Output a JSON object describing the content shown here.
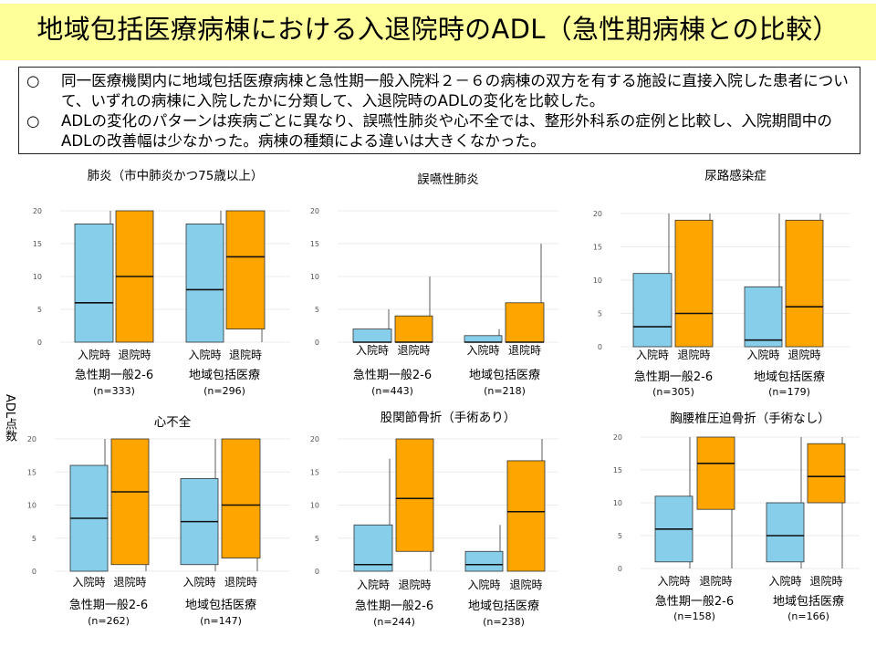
{
  "title": "地域包括医療病棟における入退院時のADL（急性期病棟との比較）",
  "summary": {
    "bullets": [
      {
        "mark": "○",
        "text": "同一医療機関内に地域包括医療病棟と急性期一般入院料２－６の病棟の双方を有する施設に直接入院した患者について、いずれの病棟に入院したかに分類して、入退院時のADLの変化を比較した。"
      },
      {
        "mark": "○",
        "text": "ADLの変化のパターンは疾病ごとに異なり、誤嚥性肺炎や心不全では、整形外科系の症例と比較し、入院期間中のADLの改善幅は少なかった。病棟の種類による違いは大きくなかった。"
      }
    ]
  },
  "y_axis_label": "ADL点数",
  "colors": {
    "admission": "#87ceeb",
    "discharge": "#ffa500",
    "grid": "#ebebeb",
    "whisker": "#333333"
  },
  "chart_data": [
    {
      "type": "box",
      "title": "肺炎（市中肺炎かつ75歳以上）",
      "ylim": [
        0,
        20
      ],
      "yticks": [
        0,
        5,
        10,
        15,
        20
      ],
      "groups": [
        {
          "name": "急性期一般2-6",
          "n": "(n=333)",
          "boxes": [
            {
              "label": "入院時",
              "color": "admission",
              "min": 0,
              "q1": 0,
              "median": 6,
              "q3": 18,
              "max": 20
            },
            {
              "label": "退院時",
              "color": "discharge",
              "min": 0,
              "q1": 0,
              "median": 10,
              "q3": 20,
              "max": 20
            }
          ]
        },
        {
          "name": "地域包括医療",
          "n": "(n=296)",
          "boxes": [
            {
              "label": "入院時",
              "color": "admission",
              "min": 0,
              "q1": 0,
              "median": 8,
              "q3": 18,
              "max": 20
            },
            {
              "label": "退院時",
              "color": "discharge",
              "min": 0,
              "q1": 2,
              "median": 13,
              "q3": 20,
              "max": 20
            }
          ]
        }
      ]
    },
    {
      "type": "box",
      "title": "誤嚥性肺炎",
      "ylim": [
        0,
        20
      ],
      "yticks": [
        0,
        5,
        10,
        15,
        20
      ],
      "groups": [
        {
          "name": "急性期一般2-6",
          "n": "(n=443)",
          "boxes": [
            {
              "label": "入院時",
              "color": "admission",
              "min": 0,
              "q1": 0,
              "median": 0,
              "q3": 2,
              "max": 5
            },
            {
              "label": "退院時",
              "color": "discharge",
              "min": 0,
              "q1": 0,
              "median": 0,
              "q3": 4,
              "max": 10
            }
          ]
        },
        {
          "name": "地域包括医療",
          "n": "(n=218)",
          "boxes": [
            {
              "label": "入院時",
              "color": "admission",
              "min": 0,
              "q1": 0,
              "median": 0,
              "q3": 1,
              "max": 2
            },
            {
              "label": "退院時",
              "color": "discharge",
              "min": 0,
              "q1": 0,
              "median": 0,
              "q3": 6,
              "max": 15
            }
          ]
        }
      ]
    },
    {
      "type": "box",
      "title": "尿路感染症",
      "ylim": [
        0,
        20
      ],
      "yticks": [
        0,
        5,
        10,
        15,
        20
      ],
      "groups": [
        {
          "name": "急性期一般2-6",
          "n": "(n=305)",
          "boxes": [
            {
              "label": "入院時",
              "color": "admission",
              "min": 0,
              "q1": 0,
              "median": 3,
              "q3": 11,
              "max": 20
            },
            {
              "label": "退院時",
              "color": "discharge",
              "min": 0,
              "q1": 0,
              "median": 5,
              "q3": 19,
              "max": 20
            }
          ]
        },
        {
          "name": "地域包括医療",
          "n": "(n=179)",
          "boxes": [
            {
              "label": "入院時",
              "color": "admission",
              "min": 0,
              "q1": 0,
              "median": 1,
              "q3": 9,
              "max": 20
            },
            {
              "label": "退院時",
              "color": "discharge",
              "min": 0,
              "q1": 0,
              "median": 6,
              "q3": 19,
              "max": 20
            }
          ]
        }
      ]
    },
    {
      "type": "box",
      "title": "心不全",
      "ylim": [
        0,
        20
      ],
      "yticks": [
        0,
        5,
        10,
        15,
        20
      ],
      "groups": [
        {
          "name": "急性期一般2-6",
          "n": "(n=262)",
          "boxes": [
            {
              "label": "入院時",
              "color": "admission",
              "min": 0,
              "q1": 0,
              "median": 8,
              "q3": 16,
              "max": 20
            },
            {
              "label": "退院時",
              "color": "discharge",
              "min": 0,
              "q1": 1,
              "median": 12,
              "q3": 20,
              "max": 20
            }
          ]
        },
        {
          "name": "地域包括医療",
          "n": "(n=147)",
          "boxes": [
            {
              "label": "入院時",
              "color": "admission",
              "min": 0,
              "q1": 1,
              "median": 7.5,
              "q3": 14,
              "max": 20
            },
            {
              "label": "退院時",
              "color": "discharge",
              "min": 0,
              "q1": 2,
              "median": 10,
              "q3": 20,
              "max": 20
            }
          ]
        }
      ]
    },
    {
      "type": "box",
      "title": "股関節骨折（手術あり）",
      "ylim": [
        0,
        20
      ],
      "yticks": [
        0,
        5,
        10,
        15,
        20
      ],
      "groups": [
        {
          "name": "急性期一般2-6",
          "n": "(n=244)",
          "boxes": [
            {
              "label": "入院時",
              "color": "admission",
              "min": 0,
              "q1": 0,
              "median": 1,
              "q3": 7,
              "max": 17
            },
            {
              "label": "退院時",
              "color": "discharge",
              "min": 0,
              "q1": 3,
              "median": 11,
              "q3": 20,
              "max": 20
            }
          ]
        },
        {
          "name": "地域包括医療",
          "n": "(n=238)",
          "boxes": [
            {
              "label": "入院時",
              "color": "admission",
              "min": 0,
              "q1": 0,
              "median": 1,
              "q3": 3,
              "max": 7
            },
            {
              "label": "退院時",
              "color": "discharge",
              "min": 0,
              "q1": 0,
              "median": 9,
              "q3": 16.7,
              "max": 20
            }
          ]
        }
      ]
    },
    {
      "type": "box",
      "title": "胸腰椎圧迫骨折（手術なし）",
      "ylim": [
        0,
        20
      ],
      "yticks": [
        0,
        5,
        10,
        15,
        20
      ],
      "groups": [
        {
          "name": "急性期一般2-6",
          "n": "(n=158)",
          "boxes": [
            {
              "label": "入院時",
              "color": "admission",
              "min": 0,
              "q1": 1,
              "median": 6,
              "q3": 11,
              "max": 20
            },
            {
              "label": "退院時",
              "color": "discharge",
              "min": 0,
              "q1": 9,
              "median": 16,
              "q3": 20,
              "max": 20
            }
          ]
        },
        {
          "name": "地域包括医療",
          "n": "(n=166)",
          "boxes": [
            {
              "label": "入院時",
              "color": "admission",
              "min": 0,
              "q1": 1,
              "median": 5,
              "q3": 10,
              "max": 20
            },
            {
              "label": "退院時",
              "color": "discharge",
              "min": 0,
              "q1": 10,
              "median": 14,
              "q3": 19,
              "max": 20
            }
          ]
        }
      ]
    }
  ]
}
